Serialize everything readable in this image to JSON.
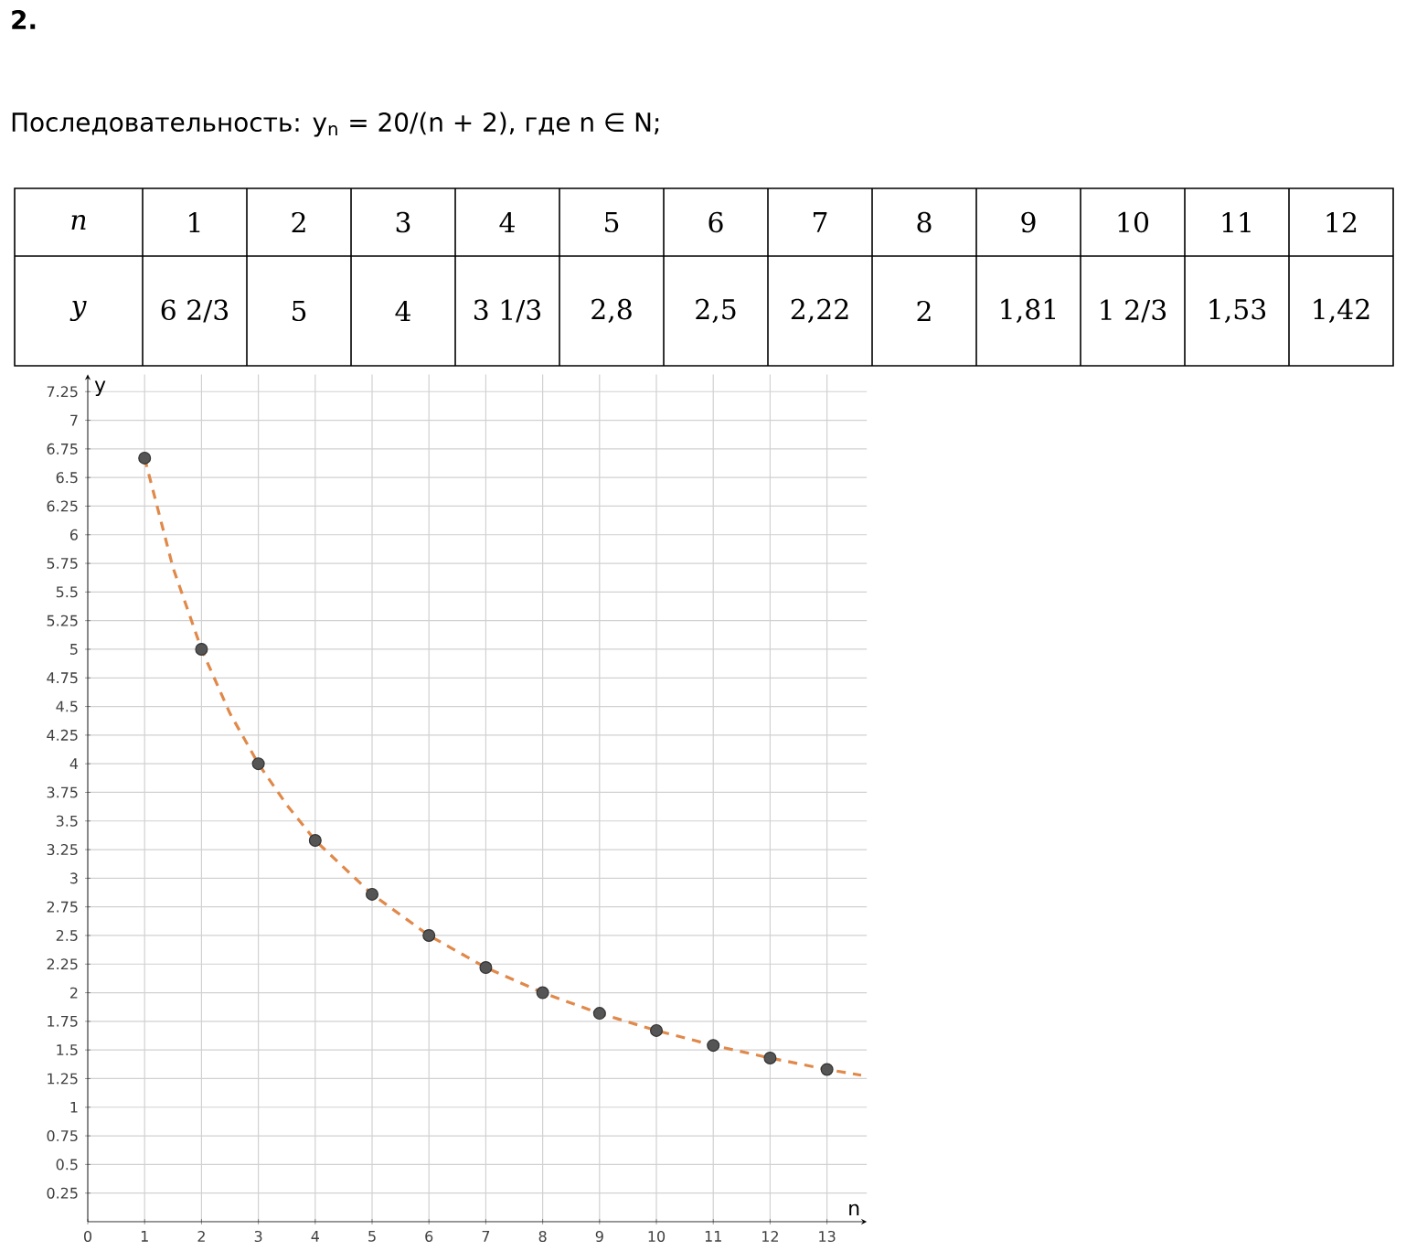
{
  "chart_data": {
    "type": "scatter",
    "title": "2.",
    "subtitle": "Последовательность: y$_{n}$ = 20/(n + 2), где n ∈ N;",
    "annotations": [
      "n",
      "1",
      "2",
      "3",
      "4",
      "5",
      "6",
      "7",
      "8",
      "9",
      "10",
      "11",
      "12",
      "y",
      "6 2/3",
      "5",
      "4",
      "3 1/3",
      "2,8",
      "2,5",
      "2,22",
      "2",
      "1,81",
      "1 2/3",
      "1,53",
      "1,42"
    ],
    "xlabel": "n",
    "ylabel": "y",
    "xlim": [
      0,
      13.7
    ],
    "ylim": [
      0,
      7.4
    ],
    "xticks": [
      0,
      1,
      2,
      3,
      4,
      5,
      6,
      7,
      8,
      9,
      10,
      11,
      12,
      13
    ],
    "yticks": [
      0.25,
      0.5,
      0.75,
      1,
      1.25,
      1.5,
      1.75,
      2,
      2.25,
      2.5,
      2.75,
      3,
      3.25,
      3.5,
      3.75,
      4,
      4.25,
      4.5,
      4.75,
      5,
      5.25,
      5.5,
      5.75,
      6,
      6.25,
      6.5,
      6.75,
      7,
      7.25
    ],
    "grid": true,
    "series": [
      {
        "type": "scatter",
        "marker": "circle",
        "color": "#555555",
        "x": [
          1,
          2,
          3,
          4,
          5,
          6,
          7,
          8,
          9,
          10,
          11,
          12,
          13
        ],
        "values": [
          6.67,
          5,
          4,
          3.33,
          2.86,
          2.5,
          2.22,
          2,
          1.82,
          1.67,
          1.54,
          1.43,
          1.33
        ]
      },
      {
        "type": "line",
        "marker": "none",
        "color": "#e0894a",
        "line_style": "dashed",
        "x": [
          1,
          1.5,
          2,
          2.5,
          3,
          3.5,
          4,
          5,
          6,
          7,
          8,
          9,
          10,
          11,
          12,
          13,
          13.6
        ],
        "values": [
          6.67,
          5.71,
          5,
          4.44,
          4,
          3.64,
          3.33,
          2.86,
          2.5,
          2.22,
          2,
          1.82,
          1.67,
          1.54,
          1.43,
          1.33,
          1.28
        ]
      }
    ]
  }
}
